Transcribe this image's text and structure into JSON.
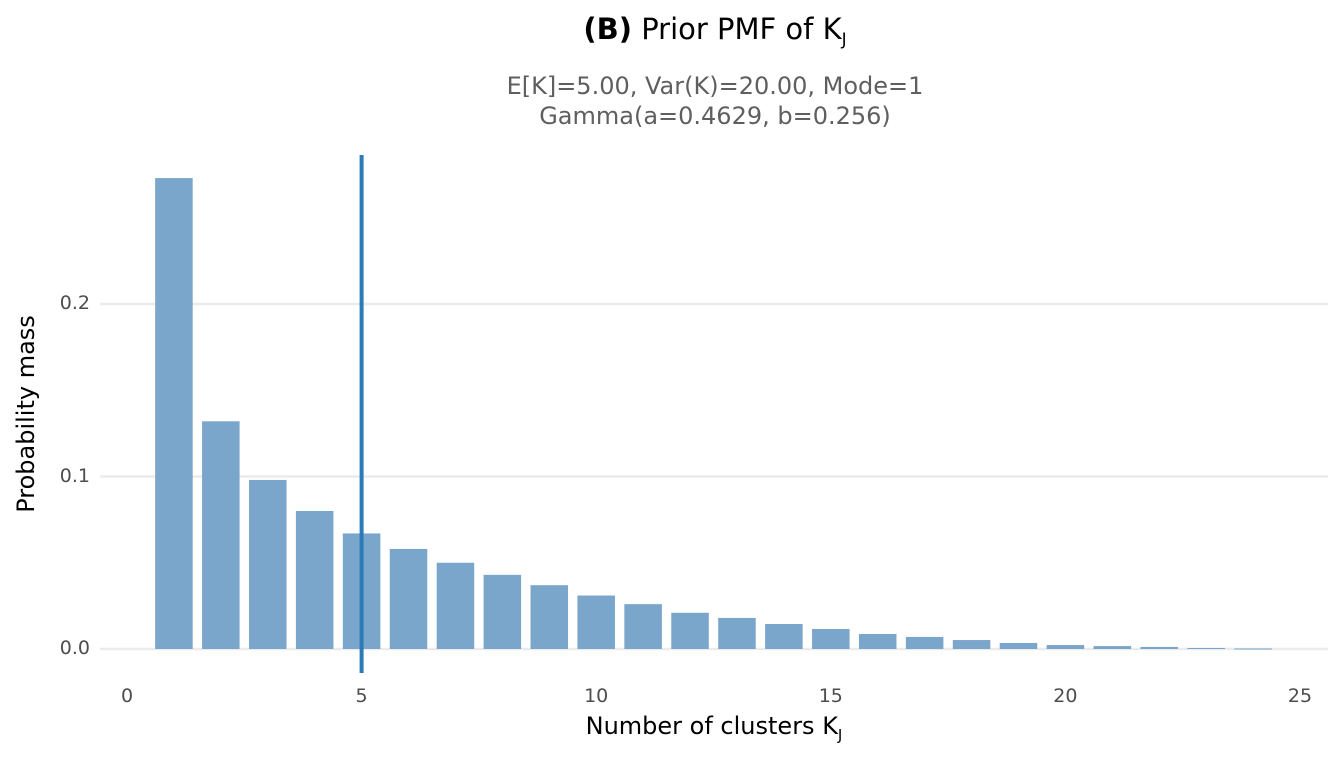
{
  "title": {
    "bold": "(B)",
    "text": "Prior PMF of K",
    "subscript": "J"
  },
  "subtitle": {
    "line1": "E[K]=5.00,  Var(K)=20.00,  Mode=1",
    "line2": "Gamma(a=0.4629, b=0.256)"
  },
  "axes": {
    "xlabel": "Number of clusters K",
    "xlabel_subscript": "J",
    "ylabel": "Probability mass",
    "yticks": [
      "0.0",
      "0.1",
      "0.2"
    ],
    "xticks": [
      "0",
      "5",
      "10",
      "15",
      "20",
      "25"
    ]
  },
  "colors": {
    "bar": "#7ba6cb",
    "vline": "#2b7bba",
    "grid": "#ebebeb"
  },
  "chart_data": {
    "type": "bar",
    "title": "(B) Prior PMF of K_J",
    "subtitle": "E[K]=5.00,  Var(K)=20.00,  Mode=1 / Gamma(a=0.4629, b=0.256)",
    "xlabel": "Number of clusters K_J",
    "ylabel": "Probability mass",
    "categories": [
      1,
      2,
      3,
      4,
      5,
      6,
      7,
      8,
      9,
      10,
      11,
      12,
      13,
      14,
      15,
      16,
      17,
      18,
      19,
      20,
      21,
      22,
      23,
      24
    ],
    "values": [
      0.273,
      0.132,
      0.098,
      0.08,
      0.067,
      0.058,
      0.05,
      0.043,
      0.037,
      0.031,
      0.026,
      0.021,
      0.018,
      0.0145,
      0.0116,
      0.0087,
      0.007,
      0.0052,
      0.0035,
      0.0023,
      0.0017,
      0.0012,
      0.0006,
      0.0003
    ],
    "xlim": [
      0,
      25
    ],
    "ylim": [
      0,
      0.28
    ],
    "vline": {
      "x": 5,
      "label": "E[K]"
    },
    "grid": "horizontal major",
    "legend": "none"
  }
}
